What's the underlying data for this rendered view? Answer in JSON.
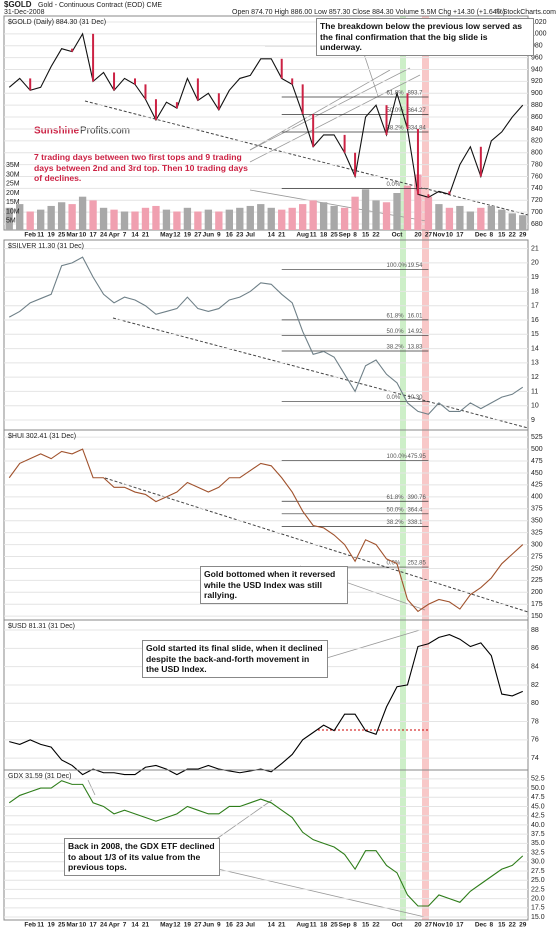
{
  "header": {
    "ticker": "$GOLD",
    "desc": "Gold - Continuous Contract (EOD) CME",
    "date": "31-Dec-2008",
    "quote": "Open 874.70 High 886.00 Low 857.30 Close 884.30 Volume 5.5M Chg +14.30 (+1.64%)",
    "credit": "© StockCharts.com",
    "logo_a": "Sunshine",
    "logo_b": "Profits.com"
  },
  "chart_data": [
    {
      "type": "line",
      "title": "$GOLD (Daily) 884.30 (31 Dec)",
      "color": "#111111",
      "down_color": "#cc2244",
      "grid": true,
      "categories": [
        null,
        null,
        "Feb",
        "11",
        "19",
        "25",
        "Mar",
        "10",
        "17",
        "24",
        "Apr",
        "7",
        "14",
        "21",
        null,
        "May",
        "12",
        "19",
        "27",
        "Jun",
        "9",
        "16",
        "23",
        "Jul",
        null,
        "14",
        "21",
        null,
        "Aug",
        "11",
        "18",
        "25",
        "Sep",
        "8",
        "15",
        "22",
        null,
        "Oct",
        null,
        "20",
        "27",
        "Nov",
        "10",
        "17",
        null,
        "Dec",
        "8",
        "15",
        "22",
        "29"
      ],
      "values": [
        910,
        925,
        905,
        910,
        945,
        975,
        970,
        1000,
        920,
        935,
        905,
        925,
        915,
        890,
        855,
        885,
        875,
        925,
        888,
        900,
        872,
        905,
        925,
        930,
        958,
        958,
        925,
        915,
        865,
        810,
        830,
        830,
        800,
        760,
        860,
        880,
        830,
        900,
        840,
        730,
        725,
        735,
        730,
        780,
        810,
        760,
        820,
        835,
        860,
        880
      ],
      "ylim": [
        670,
        1030
      ],
      "yticks": [
        680,
        700,
        720,
        740,
        760,
        780,
        800,
        820,
        840,
        860,
        880,
        900,
        920,
        940,
        960,
        980,
        1000,
        1020
      ],
      "volume": {
        "up_color": "#a8a8a8",
        "down_color": "#f0a0b0",
        "ylim": [
          0,
          40000000
        ],
        "values": [
          12000000,
          14000000,
          10000000,
          11000000,
          13000000,
          15000000,
          14000000,
          18000000,
          16000000,
          12000000,
          11000000,
          10000000,
          10000000,
          12000000,
          13000000,
          11000000,
          10000000,
          12000000,
          10000000,
          11000000,
          10000000,
          11000000,
          12000000,
          13000000,
          14000000,
          12000000,
          11000000,
          12000000,
          14000000,
          16000000,
          15000000,
          13000000,
          12000000,
          18000000,
          22000000,
          16000000,
          15000000,
          20000000,
          24000000,
          30000000,
          18000000,
          14000000,
          12000000,
          13000000,
          10000000,
          12000000,
          13000000,
          11000000,
          9000000,
          8000000
        ],
        "yticks": [
          {
            "value": 5000000,
            "label": "5M"
          },
          {
            "value": 10000000,
            "label": "10M"
          },
          {
            "value": 15000000,
            "label": "15M"
          },
          {
            "value": 20000000,
            "label": "20M"
          },
          {
            "value": 25000000,
            "label": "25M"
          },
          {
            "value": 30000000,
            "label": "30M"
          },
          {
            "value": 35000000,
            "label": "35M"
          }
        ]
      },
      "fib_levels": [
        {
          "ratio": "61.8%",
          "value": 893.7
        },
        {
          "ratio": "50.0%",
          "value": 864.27
        },
        {
          "ratio": "38.2%",
          "value": 834.84
        },
        {
          "ratio": "0.0%",
          "value": 739.6,
          "value_label": ""
        }
      ],
      "note": "The breakdown below the previous low served as the final confirmation that the big slide is underway.",
      "note2": "7 trading days between two first tops and 9 trading days between 2nd and 3rd top. Then 10 trading days of declines."
    },
    {
      "type": "line",
      "title": "$SILVER 11.30 (31 Dec)",
      "color": "#6f8088",
      "grid": true,
      "values": [
        16.2,
        16.6,
        17.2,
        17.5,
        17.8,
        19.8,
        20.0,
        20.4,
        19.0,
        17.8,
        17.2,
        17.6,
        17.4,
        17.0,
        16.4,
        16.6,
        16.8,
        17.6,
        16.8,
        16.6,
        16.8,
        17.4,
        17.6,
        18.0,
        18.6,
        18.5,
        17.8,
        17.2,
        15.2,
        13.6,
        13.8,
        13.4,
        12.2,
        11.0,
        12.8,
        13.2,
        12.2,
        11.6,
        10.2,
        9.6,
        9.4,
        10.2,
        9.6,
        9.6,
        10.2,
        9.8,
        10.2,
        10.6,
        10.8,
        11.3
      ],
      "ylim": [
        8.3,
        21.6
      ],
      "yticks": [
        9,
        10,
        11,
        12,
        13,
        14,
        15,
        16,
        17,
        18,
        19,
        20,
        21
      ],
      "fib_levels": [
        {
          "ratio": "100.0%",
          "value": 19.54
        },
        {
          "ratio": "61.8%",
          "value": 16.01
        },
        {
          "ratio": "50.0%",
          "value": 14.92
        },
        {
          "ratio": "38.2%",
          "value": 13.83
        },
        {
          "ratio": "0.0%",
          "value": 10.3,
          "value_label": "10.30"
        }
      ]
    },
    {
      "type": "line",
      "title": "$HUI 302.41 (31 Dec)",
      "color": "#a0522d",
      "grid": true,
      "values": [
        440,
        470,
        480,
        490,
        480,
        495,
        490,
        500,
        440,
        440,
        420,
        420,
        410,
        405,
        390,
        400,
        410,
        430,
        420,
        410,
        420,
        440,
        440,
        455,
        470,
        465,
        440,
        410,
        370,
        340,
        335,
        320,
        300,
        265,
        310,
        300,
        270,
        260,
        185,
        160,
        175,
        185,
        180,
        165,
        195,
        210,
        230,
        260,
        280,
        300
      ],
      "ylim": [
        142,
        540
      ],
      "yticks": [
        150,
        175,
        200,
        225,
        250,
        275,
        300,
        325,
        350,
        375,
        400,
        425,
        450,
        475,
        500,
        525
      ],
      "fib_levels": [
        {
          "ratio": "100.0%",
          "value": 475.95
        },
        {
          "ratio": "61.8%",
          "value": 390.76
        },
        {
          "ratio": "50.0%",
          "value": 364.4
        },
        {
          "ratio": "38.2%",
          "value": 338.1
        },
        {
          "ratio": "0.0%",
          "value": 252.85
        }
      ],
      "note": "Gold bottomed when it reversed while the USD Index was still rallying."
    },
    {
      "type": "line",
      "title": "$USD 81.31 (31 Dec)",
      "color": "#000000",
      "grid": true,
      "values": [
        75.8,
        75.5,
        76.0,
        75.5,
        75.2,
        73.8,
        73.2,
        72.2,
        72.8,
        72.4,
        72.4,
        72.2,
        72.2,
        73.0,
        73.2,
        72.8,
        72.2,
        72.8,
        72.8,
        73.2,
        72.8,
        72.6,
        72.4,
        72.6,
        72.8,
        72.5,
        73.4,
        74.4,
        76.0,
        76.8,
        77.6,
        77.0,
        78.8,
        78.8,
        77.0,
        76.6,
        79.6,
        81.8,
        82.0,
        86.2,
        86.5,
        87.2,
        87.5,
        87.0,
        86.2,
        86.6,
        85.2,
        81.0,
        80.8,
        81.3
      ],
      "ylim": [
        72.7,
        89.1
      ],
      "yticks": [
        74,
        76,
        78,
        80,
        82,
        84,
        86,
        88
      ],
      "note": "Gold started its final slide, when it declined despite the back-and-forth movement in the USD Index."
    },
    {
      "type": "line",
      "title": "GDX 31.59 (31 Dec)",
      "color": "#2e7d1a",
      "grid": true,
      "categories": [
        null,
        null,
        "Feb",
        "11",
        "19",
        "25",
        "Mar",
        "10",
        "17",
        "24",
        "Apr",
        "7",
        "14",
        "21",
        null,
        "May",
        "12",
        "19",
        "27",
        "Jun",
        "9",
        "16",
        "23",
        "Jul",
        null,
        "14",
        "21",
        null,
        "Aug",
        "11",
        "18",
        "25",
        "Sep",
        "8",
        "15",
        "22",
        null,
        "Oct",
        null,
        "20",
        "27",
        "Nov",
        "10",
        "17",
        null,
        "Dec",
        "8",
        "15",
        "22",
        "29"
      ],
      "values": [
        46,
        48,
        49,
        50,
        50,
        52,
        51,
        51,
        46,
        45,
        43,
        44,
        43,
        42,
        41,
        42,
        43,
        45,
        44,
        43,
        43,
        45,
        45,
        46,
        47,
        46,
        44,
        42,
        38,
        36,
        35,
        34,
        32,
        28,
        33,
        33,
        29,
        27,
        21,
        18,
        18,
        21,
        20,
        19,
        22,
        24,
        26,
        28,
        29,
        31.6
      ],
      "ylim": [
        14.2,
        54.9
      ],
      "yticks": [
        {
          "value": 15,
          "label": "15.0"
        },
        17.5,
        {
          "value": 20,
          "label": "20.0"
        },
        22.5,
        {
          "value": 25,
          "label": "25.0"
        },
        27.5,
        {
          "value": 30,
          "label": "30.0"
        },
        32.5,
        {
          "value": 35,
          "label": "35.0"
        },
        37.5,
        {
          "value": 40,
          "label": "40.0"
        },
        42.5,
        {
          "value": 45,
          "label": "45.0"
        },
        47.5,
        {
          "value": 50,
          "label": "50.0"
        },
        52.5
      ],
      "note": "Back in 2008, the GDX ETF declined to about 1/3 of its value from the previous tops."
    }
  ]
}
